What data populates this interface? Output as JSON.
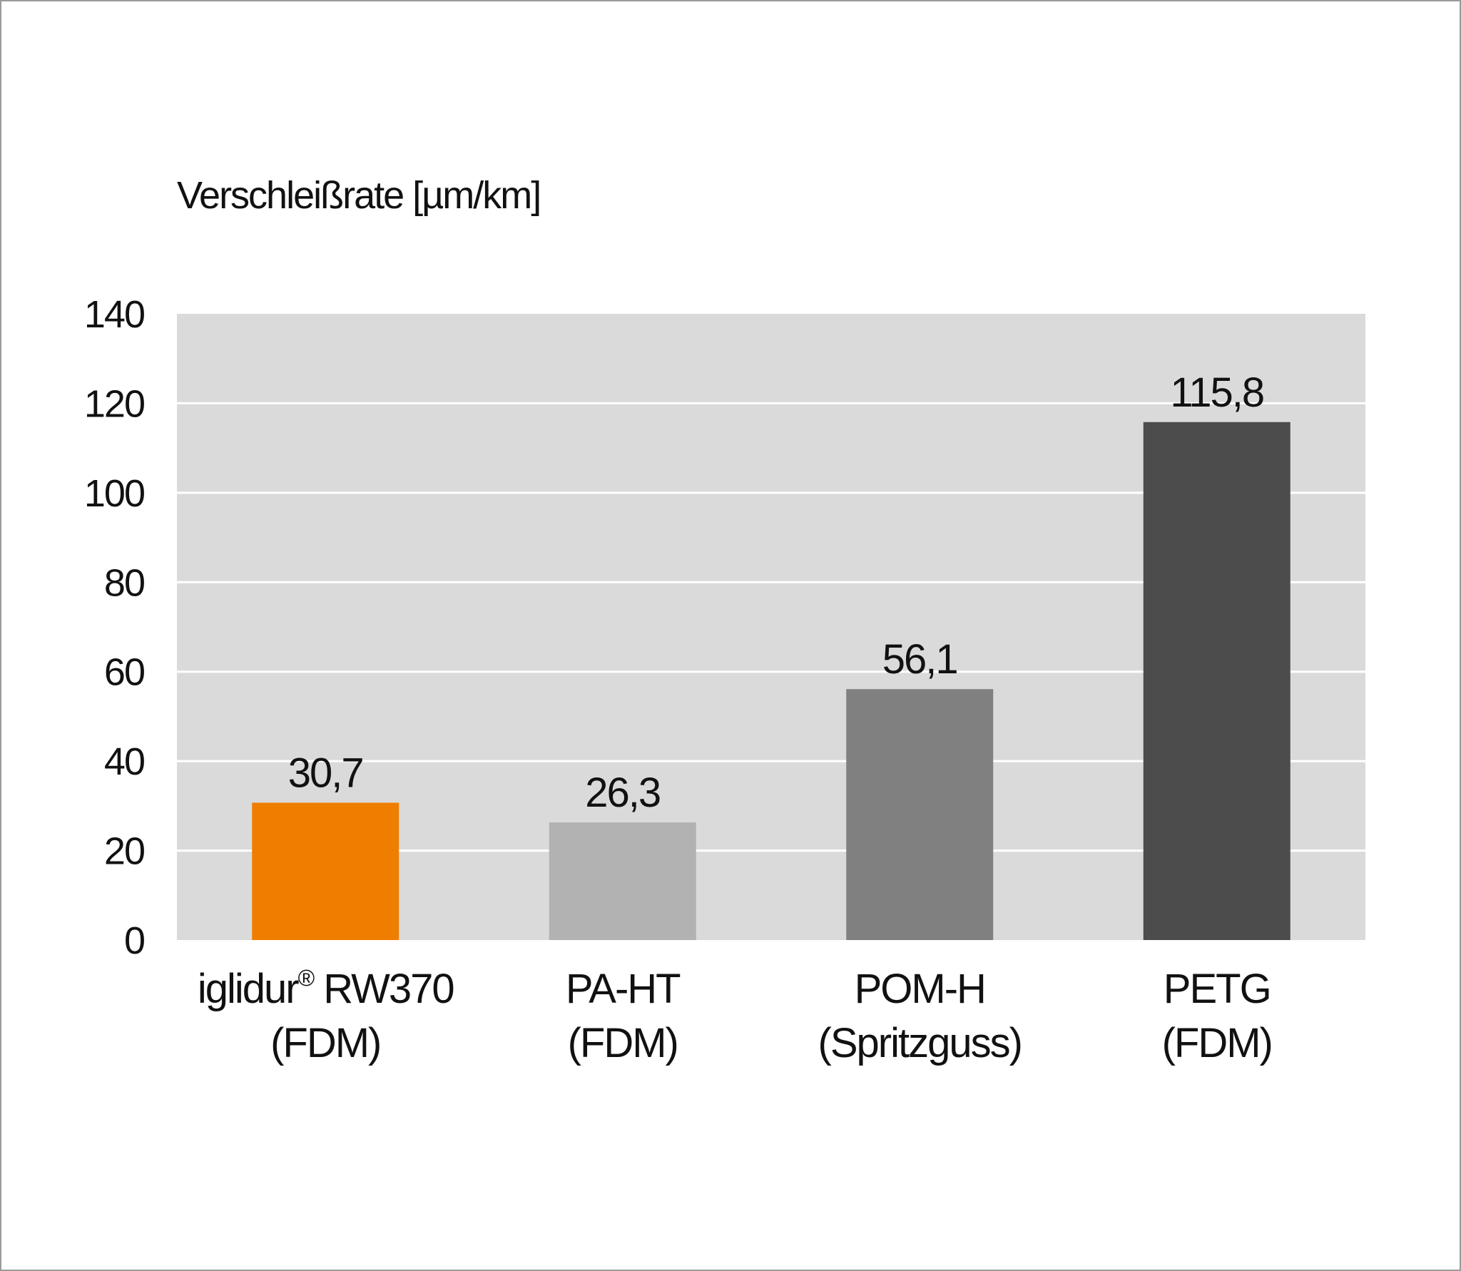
{
  "chart_data": {
    "type": "bar",
    "ylabel": "Verschleißrate [µm/km]",
    "ylim": [
      0,
      140
    ],
    "yticks": [
      0,
      20,
      40,
      60,
      80,
      100,
      120,
      140
    ],
    "grid": true,
    "categories": [
      {
        "line1": "iglidur",
        "line1_sup": "®",
        "line1_rest": " RW370",
        "line2": "(FDM)"
      },
      {
        "line1": "PA-HT",
        "line1_sup": "",
        "line1_rest": "",
        "line2": "(FDM)"
      },
      {
        "line1": "POM-H",
        "line1_sup": "",
        "line1_rest": "",
        "line2": "(Spritzguss)"
      },
      {
        "line1": "PETG",
        "line1_sup": "",
        "line1_rest": "",
        "line2": "(FDM)"
      }
    ],
    "values": [
      30.7,
      26.3,
      56.1,
      115.8
    ],
    "value_labels": [
      "30,7",
      "26,3",
      "56,1",
      "115,8"
    ],
    "colors": [
      "#ef7d00",
      "#b2b2b2",
      "#808080",
      "#4c4c4c"
    ],
    "plot_background": "#dadada",
    "grid_color": "#ffffff"
  }
}
